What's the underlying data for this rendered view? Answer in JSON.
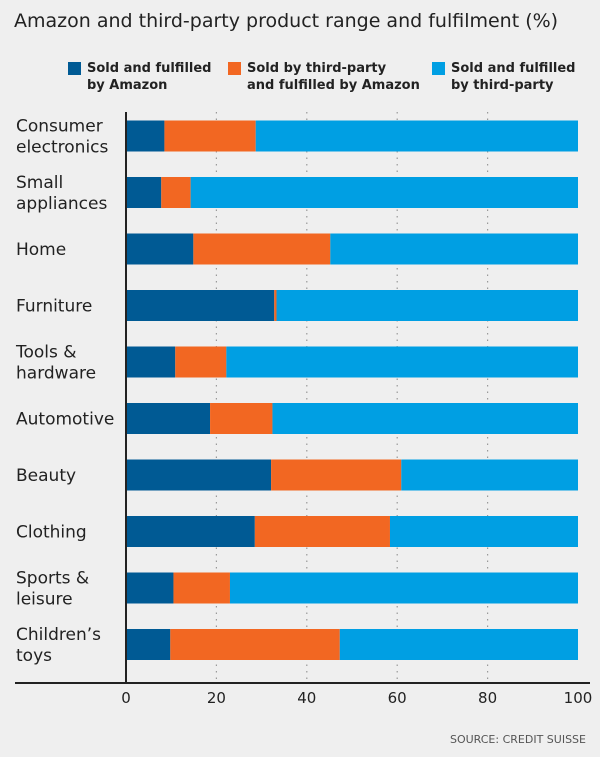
{
  "chart_data": {
    "type": "bar",
    "orientation": "horizontal",
    "stacked": true,
    "title": "Amazon and third-party product range and fulfilment (%)",
    "categories": [
      "Consumer\nelectronics",
      "Small\nappliances",
      "Home",
      "Furniture",
      "Tools &\nhardware",
      "Automotive",
      "Beauty",
      "Clothing",
      "Sports &\nleisure",
      "Children’s\ntoys"
    ],
    "series": [
      {
        "name": "Sold and fulfilled\nby Amazon",
        "color": "#005a94",
        "values": [
          8.5,
          7.8,
          14.9,
          32.8,
          10.9,
          18.6,
          32.1,
          28.5,
          10.5,
          9.8
        ]
      },
      {
        "name": "Sold by third-party\nand fulfilled by Amazon",
        "color": "#f26722",
        "values": [
          20.2,
          6.5,
          30.3,
          0.5,
          11.3,
          13.8,
          28.8,
          29.9,
          12.5,
          37.5
        ]
      },
      {
        "name": "Sold and fulfilled\nby third-party",
        "color": "#009fe3",
        "values": [
          71.3,
          85.7,
          54.8,
          66.7,
          77.8,
          67.6,
          39.1,
          41.6,
          77.0,
          52.7
        ]
      }
    ],
    "xlim": [
      0,
      100
    ],
    "xticks": [
      0,
      20,
      40,
      60,
      80,
      100
    ],
    "xtick_labels": [
      "0",
      "20",
      "40",
      "60",
      "80",
      "100"
    ],
    "grid": "vertical dotted",
    "legend_position": "top",
    "xlabel": "",
    "ylabel": ""
  },
  "source": "SOURCE: CREDIT SUISSE"
}
